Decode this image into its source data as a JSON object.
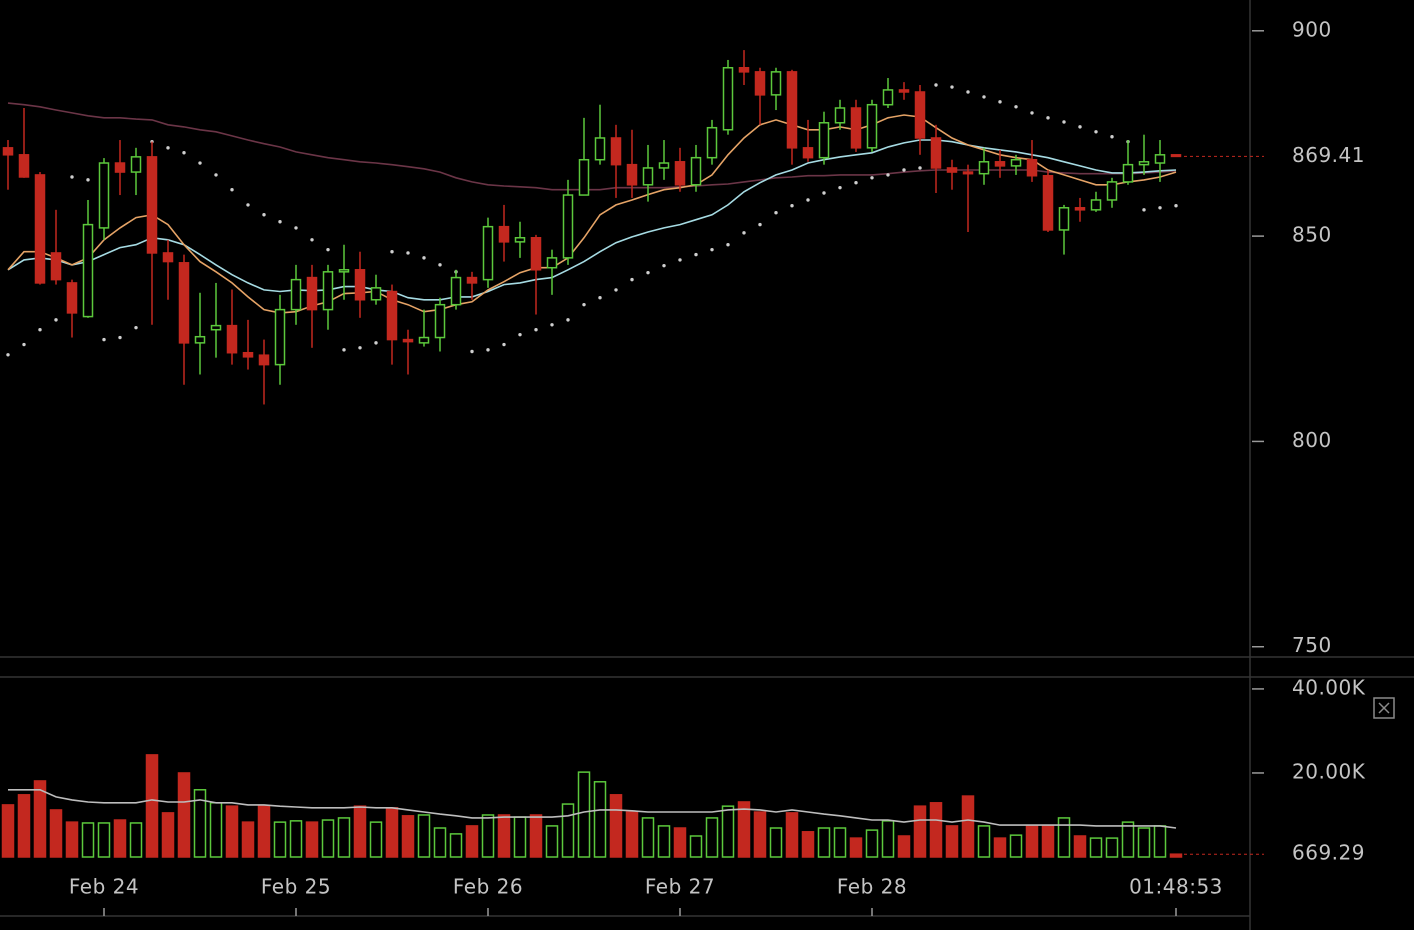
{
  "chart_data": [
    {
      "type": "candlestick",
      "up_color": "#5cc83c",
      "down_color": "#c3281f",
      "xlim": [
        -0.5,
        77.625
      ],
      "xticks": [
        {
          "value": 6,
          "label": "Feb 24"
        },
        {
          "value": 18,
          "label": "Feb 25"
        },
        {
          "value": 30,
          "label": "Feb 26"
        },
        {
          "value": 42,
          "label": "Feb 27"
        },
        {
          "value": 54,
          "label": "Feb 28"
        },
        {
          "value": 73,
          "label": "01:48:53"
        }
      ],
      "ylim": [
        747.5,
        907.5
      ],
      "yticks": [
        900,
        850,
        800,
        750
      ],
      "open": [
        871.5,
        869.8,
        864.9,
        845.9,
        838.6,
        830.4,
        852.0,
        867.8,
        865.6,
        869.3,
        845.9,
        843.5,
        824.0,
        827.2,
        828.2,
        821.6,
        821.0,
        818.7,
        832.1,
        839.9,
        832.1,
        841.3,
        841.8,
        834.5,
        836.5,
        824.8,
        824.0,
        825.3,
        833.3,
        839.9,
        839.4,
        852.3,
        848.6,
        849.6,
        842.3,
        844.7,
        860.0,
        868.6,
        873.9,
        867.4,
        862.5,
        866.6,
        868.1,
        862.5,
        869.1,
        875.9,
        891.0,
        890.0,
        884.4,
        890.0,
        871.5,
        869.1,
        877.6,
        881.2,
        871.5,
        882.0,
        885.6,
        885.1,
        873.9,
        866.6,
        865.6,
        865.2,
        868.1,
        867.1,
        868.6,
        864.7,
        851.5,
        856.9,
        856.4,
        858.8,
        863.2,
        867.4,
        867.8,
        869.8
      ],
      "high": [
        873.4,
        881.2,
        865.6,
        856.4,
        839.4,
        858.8,
        869.0,
        873.4,
        871.5,
        873.0,
        849.1,
        845.5,
        836.2,
        838.6,
        837.0,
        829.6,
        824.8,
        835.7,
        843.0,
        843.0,
        843.0,
        847.9,
        846.2,
        840.6,
        838.2,
        827.2,
        832.1,
        835.0,
        841.8,
        841.3,
        854.5,
        857.6,
        853.5,
        850.3,
        846.7,
        863.7,
        878.8,
        882.0,
        877.1,
        875.9,
        872.2,
        873.4,
        871.5,
        872.2,
        878.3,
        892.9,
        895.3,
        891.0,
        891.0,
        890.5,
        878.3,
        880.3,
        883.2,
        883.2,
        883.2,
        888.5,
        887.5,
        886.8,
        877.1,
        868.6,
        867.4,
        871.5,
        871.0,
        869.8,
        873.4,
        866.1,
        857.6,
        859.3,
        860.8,
        864.2,
        873.4,
        874.7,
        873.4,
        869.8
      ],
      "low": [
        861.3,
        864.2,
        838.2,
        838.2,
        825.3,
        830.1,
        849.1,
        860.0,
        860.0,
        828.4,
        834.5,
        813.8,
        816.3,
        820.4,
        818.7,
        817.5,
        809.0,
        813.8,
        828.4,
        822.8,
        827.2,
        834.5,
        830.1,
        833.3,
        818.7,
        816.3,
        823.1,
        821.9,
        832.1,
        834.5,
        837.4,
        843.8,
        844.7,
        830.9,
        835.7,
        843.0,
        860.0,
        867.4,
        859.3,
        859.3,
        858.4,
        863.7,
        860.8,
        860.8,
        867.4,
        874.7,
        886.8,
        877.1,
        880.7,
        867.4,
        868.1,
        867.4,
        875.9,
        870.5,
        870.5,
        881.2,
        883.2,
        869.8,
        860.5,
        861.3,
        851.0,
        862.5,
        864.2,
        864.9,
        863.2,
        851.0,
        845.5,
        853.5,
        855.9,
        856.9,
        862.5,
        864.9,
        863.2,
        869.4
      ],
      "close": [
        869.8,
        864.4,
        838.6,
        839.4,
        831.3,
        852.8,
        867.8,
        865.6,
        869.3,
        845.9,
        843.8,
        824.0,
        825.5,
        828.2,
        821.6,
        820.6,
        818.7,
        832.1,
        839.4,
        832.1,
        841.3,
        841.8,
        834.5,
        837.4,
        824.8,
        824.3,
        825.3,
        833.3,
        839.9,
        838.6,
        852.3,
        848.6,
        849.6,
        841.8,
        844.7,
        860.0,
        868.6,
        873.9,
        867.4,
        862.5,
        866.6,
        867.8,
        862.5,
        869.1,
        876.4,
        891.0,
        890.0,
        884.4,
        890.0,
        871.5,
        869.1,
        877.6,
        881.2,
        871.5,
        882.0,
        885.6,
        885.1,
        873.9,
        866.6,
        865.6,
        865.2,
        868.1,
        867.1,
        868.6,
        864.7,
        851.5,
        856.9,
        856.4,
        858.8,
        863.2,
        867.4,
        868.1,
        869.8,
        869.41
      ],
      "overlays": [
        {
          "color": "#6b3547",
          "values": [
            882.4,
            882.0,
            881.5,
            880.7,
            880.0,
            879.3,
            878.8,
            878.8,
            878.5,
            878.3,
            877.1,
            876.6,
            875.9,
            875.4,
            874.4,
            873.4,
            872.5,
            871.7,
            870.5,
            869.8,
            869.1,
            868.6,
            868.1,
            867.8,
            867.4,
            866.9,
            866.4,
            865.6,
            864.2,
            863.2,
            862.5,
            862.2,
            862.0,
            861.8,
            861.3,
            861.3,
            861.3,
            861.3,
            861.8,
            861.8,
            861.8,
            861.8,
            862.0,
            862.2,
            862.5,
            862.7,
            863.2,
            863.7,
            864.2,
            864.4,
            864.7,
            864.7,
            864.9,
            864.9,
            864.9,
            865.2,
            865.6,
            865.9,
            866.1,
            866.1,
            866.1,
            866.1,
            866.1,
            866.1,
            866.1,
            865.6,
            865.4,
            865.2,
            865.2,
            865.2,
            865.2,
            865.4,
            865.6,
            865.9
          ]
        },
        {
          "color": "#a6dbe3",
          "values": [
            841.8,
            844.2,
            844.7,
            844.2,
            843.0,
            843.8,
            845.5,
            847.2,
            847.9,
            849.6,
            849.1,
            847.9,
            845.5,
            843.0,
            840.6,
            838.6,
            836.9,
            836.5,
            836.9,
            836.7,
            836.9,
            837.7,
            837.7,
            836.9,
            836.5,
            835.0,
            834.5,
            834.5,
            835.2,
            835.2,
            836.5,
            838.2,
            838.6,
            839.4,
            839.9,
            841.8,
            843.8,
            846.2,
            848.4,
            849.8,
            851.0,
            852.0,
            852.8,
            854.0,
            855.2,
            857.6,
            860.8,
            863.0,
            864.9,
            866.1,
            867.8,
            868.6,
            869.3,
            869.8,
            870.3,
            871.7,
            872.7,
            873.4,
            873.4,
            873.0,
            872.2,
            871.5,
            871.0,
            870.5,
            869.8,
            869.1,
            868.1,
            867.1,
            866.1,
            865.4,
            865.4,
            865.6,
            865.9,
            866.1
          ]
        },
        {
          "color": "#e5a366",
          "values": [
            841.8,
            846.2,
            846.2,
            844.7,
            843.0,
            844.7,
            849.1,
            852.0,
            854.5,
            855.2,
            852.8,
            847.9,
            843.8,
            841.3,
            838.6,
            835.2,
            832.1,
            831.3,
            831.6,
            833.0,
            834.0,
            836.0,
            836.2,
            836.5,
            834.5,
            833.3,
            831.6,
            832.1,
            833.3,
            834.0,
            836.9,
            838.9,
            841.1,
            842.3,
            842.3,
            844.7,
            849.6,
            855.2,
            857.6,
            858.8,
            860.1,
            861.3,
            861.8,
            862.5,
            864.9,
            869.8,
            873.9,
            877.1,
            878.3,
            877.1,
            875.9,
            875.9,
            876.6,
            875.9,
            877.1,
            878.8,
            879.5,
            879.0,
            876.4,
            873.9,
            872.2,
            871.0,
            869.8,
            869.1,
            868.6,
            866.1,
            864.9,
            863.7,
            862.5,
            862.5,
            863.2,
            863.7,
            864.4,
            865.6
          ]
        }
      ],
      "sar": {
        "color": "#cfcfcf",
        "values": [
          821.1,
          823.6,
          827.2,
          829.6,
          864.4,
          863.7,
          824.8,
          825.3,
          827.7,
          873.0,
          871.5,
          870.3,
          867.8,
          864.9,
          861.3,
          857.6,
          855.2,
          853.5,
          852.0,
          849.1,
          846.7,
          822.3,
          822.8,
          824.0,
          846.2,
          845.9,
          844.7,
          843.0,
          841.3,
          821.9,
          822.3,
          823.6,
          826.0,
          827.2,
          828.4,
          829.6,
          833.3,
          835.0,
          836.9,
          839.4,
          841.1,
          842.8,
          844.2,
          845.5,
          846.7,
          847.9,
          850.8,
          852.8,
          855.7,
          857.4,
          858.8,
          860.5,
          861.8,
          863.0,
          864.2,
          864.9,
          866.1,
          866.6,
          886.8,
          886.3,
          885.1,
          883.9,
          882.7,
          881.5,
          880.0,
          878.8,
          877.8,
          876.6,
          875.4,
          874.2,
          873.0,
          856.4,
          856.9,
          857.4
        ]
      }
    },
    {
      "type": "bar",
      "ylim": [
        0,
        42600
      ],
      "yticks": [
        {
          "value": 40000,
          "label": "40.00K"
        },
        {
          "value": 20000,
          "label": "20.00K"
        }
      ],
      "values": [
        12400,
        14800,
        18100,
        11200,
        8300,
        8100,
        8100,
        8800,
        8100,
        24300,
        10500,
        20000,
        16000,
        12900,
        12100,
        8300,
        12100,
        8300,
        8600,
        8300,
        8800,
        9300,
        12100,
        8300,
        11700,
        9800,
        10000,
        6900,
        5500,
        7400,
        10000,
        10000,
        9500,
        10000,
        7400,
        12600,
        20200,
        17900,
        14800,
        10700,
        9300,
        7400,
        6900,
        5000,
        9300,
        12100,
        13100,
        10700,
        6900,
        10500,
        6000,
        6900,
        6900,
        4500,
        6400,
        8600,
        5000,
        12100,
        12900,
        7400,
        14500,
        7400,
        4500,
        5200,
        7400,
        7400,
        9300,
        5000,
        4500,
        4500,
        8300,
        6900,
        7400,
        669.29
      ],
      "overlay": {
        "color": "#bdbdbd",
        "values": [
          16000,
          16000,
          16000,
          14300,
          13600,
          13100,
          12900,
          12900,
          12900,
          13600,
          13100,
          13100,
          13600,
          12900,
          12900,
          12400,
          12400,
          12100,
          11900,
          11700,
          11700,
          11700,
          11900,
          11700,
          11700,
          11200,
          10700,
          10200,
          9800,
          9300,
          9300,
          9500,
          9500,
          9500,
          9500,
          9800,
          10700,
          11200,
          11200,
          11000,
          10700,
          10700,
          10700,
          10700,
          10700,
          11200,
          11400,
          11200,
          10700,
          11200,
          10700,
          10200,
          9800,
          9300,
          8800,
          8800,
          8300,
          8800,
          8800,
          8300,
          8800,
          8300,
          7600,
          7600,
          7600,
          7600,
          7600,
          7600,
          7400,
          7400,
          7400,
          7400,
          7400,
          6900
        ]
      }
    }
  ]
}
